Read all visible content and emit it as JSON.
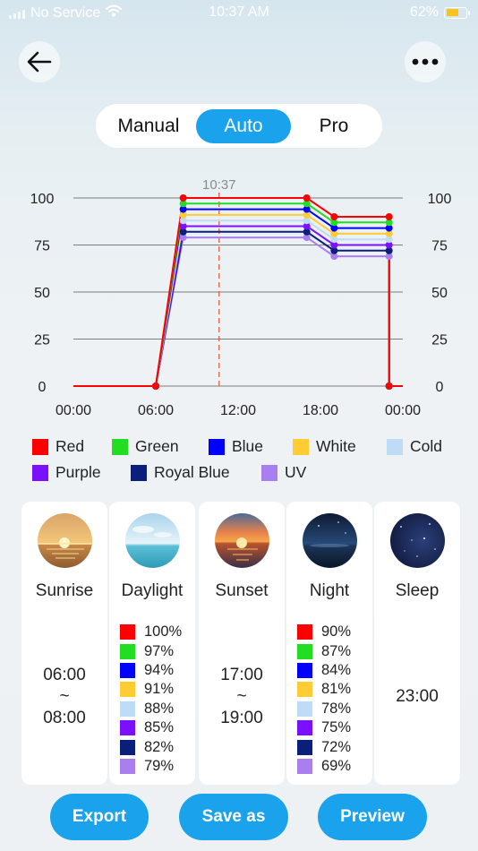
{
  "status_bar": {
    "carrier": "No Service",
    "time": "10:37 AM",
    "battery": "62%",
    "battery_level": 0.62
  },
  "header": {
    "back_icon": "arrow-left-icon",
    "more_icon": "more-horizontal-icon"
  },
  "mode_tabs": [
    {
      "label": "Manual",
      "active": false
    },
    {
      "label": "Auto",
      "active": true
    },
    {
      "label": "Pro",
      "active": false
    }
  ],
  "chart_data": {
    "type": "line",
    "current_time_marker": "10:37",
    "current_time_hours": 10.617,
    "x_ticks": [
      "00:00",
      "06:00",
      "12:00",
      "18:00",
      "00:00"
    ],
    "x_range_hours": [
      0,
      24
    ],
    "y_ticks": [
      "100",
      "75",
      "50",
      "25",
      "0"
    ],
    "ylim": [
      0,
      100
    ],
    "grid": true,
    "x_hours": [
      0,
      6,
      8,
      17,
      19,
      23,
      23.001,
      24
    ],
    "series": [
      {
        "name": "Red",
        "color": "#ff0000",
        "values": [
          0,
          0,
          100,
          100,
          90,
          90,
          0,
          0
        ]
      },
      {
        "name": "Green",
        "color": "#22dd22",
        "values": [
          0,
          0,
          97,
          97,
          87,
          87,
          0,
          0
        ]
      },
      {
        "name": "Blue",
        "color": "#0000ff",
        "values": [
          0,
          0,
          94,
          94,
          84,
          84,
          0,
          0
        ]
      },
      {
        "name": "White",
        "color": "#ffcc33",
        "values": [
          0,
          0,
          91,
          91,
          81,
          81,
          0,
          0
        ]
      },
      {
        "name": "Cold",
        "color": "#bfdcf7",
        "values": [
          0,
          0,
          88,
          88,
          78,
          78,
          0,
          0
        ]
      },
      {
        "name": "Purple",
        "color": "#7a10ff",
        "values": [
          0,
          0,
          85,
          85,
          75,
          75,
          0,
          0
        ]
      },
      {
        "name": "Royal Blue",
        "color": "#0a1f7a",
        "values": [
          0,
          0,
          82,
          82,
          72,
          72,
          0,
          0
        ]
      },
      {
        "name": "UV",
        "color": "#a97ff0",
        "values": [
          0,
          0,
          79,
          79,
          69,
          69,
          0,
          0
        ]
      }
    ]
  },
  "legend": [
    {
      "label": "Red",
      "color": "#ff0000"
    },
    {
      "label": "Green",
      "color": "#22dd22"
    },
    {
      "label": "Blue",
      "color": "#0000ff"
    },
    {
      "label": "White",
      "color": "#ffcc33"
    },
    {
      "label": "Cold",
      "color": "#bfdcf7"
    },
    {
      "label": "Purple",
      "color": "#7a10ff"
    },
    {
      "label": "Royal Blue",
      "color": "#0a1f7a"
    },
    {
      "label": "UV",
      "color": "#a97ff0"
    }
  ],
  "scenes": [
    {
      "title": "Sunrise",
      "time_start": "06:00",
      "time_sep": "~",
      "time_end": "08:00",
      "icon": "sunrise-icon"
    },
    {
      "title": "Daylight",
      "icon": "daylight-icon",
      "percentages": [
        "100%",
        "97%",
        "94%",
        "91%",
        "88%",
        "85%",
        "82%",
        "79%"
      ]
    },
    {
      "title": "Sunset",
      "time_start": "17:00",
      "time_sep": "~",
      "time_end": "19:00",
      "icon": "sunset-icon"
    },
    {
      "title": "Night",
      "icon": "night-icon",
      "percentages": [
        "90%",
        "87%",
        "84%",
        "81%",
        "78%",
        "75%",
        "72%",
        "69%"
      ]
    },
    {
      "title": "Sleep",
      "time": "23:00",
      "icon": "sleep-icon"
    }
  ],
  "actions": {
    "export": "Export",
    "save_as": "Save as",
    "preview": "Preview"
  },
  "colors": {
    "accent": "#1aa3ec"
  }
}
